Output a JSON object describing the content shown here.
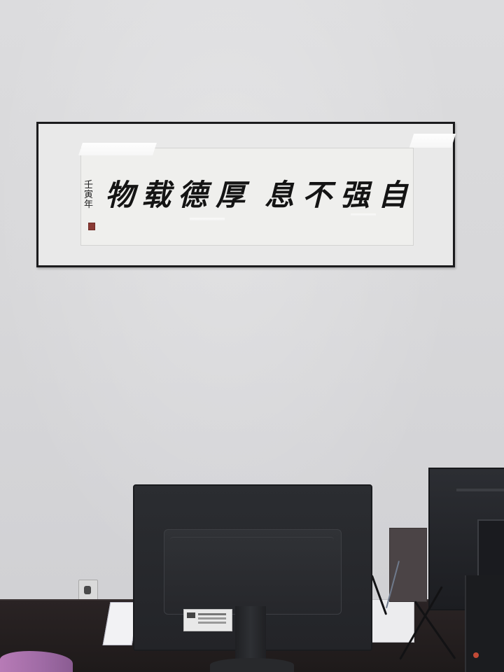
{
  "scene": {
    "description_elements": {
      "calligraphy_text": "物载德厚 息不强自",
      "signature_text": "壬寅年"
    }
  },
  "calligraphy": {
    "characters": [
      "物",
      "载",
      "德",
      "厚",
      "息",
      "不",
      "强",
      "自"
    ],
    "signature": "壬寅年"
  },
  "colors": {
    "wall": "#d9d9db",
    "frame": "#1b1b1d",
    "ink": "#141414",
    "seal": "#8a3a34",
    "desk": "#231e1f",
    "monitor": "#26272b"
  }
}
